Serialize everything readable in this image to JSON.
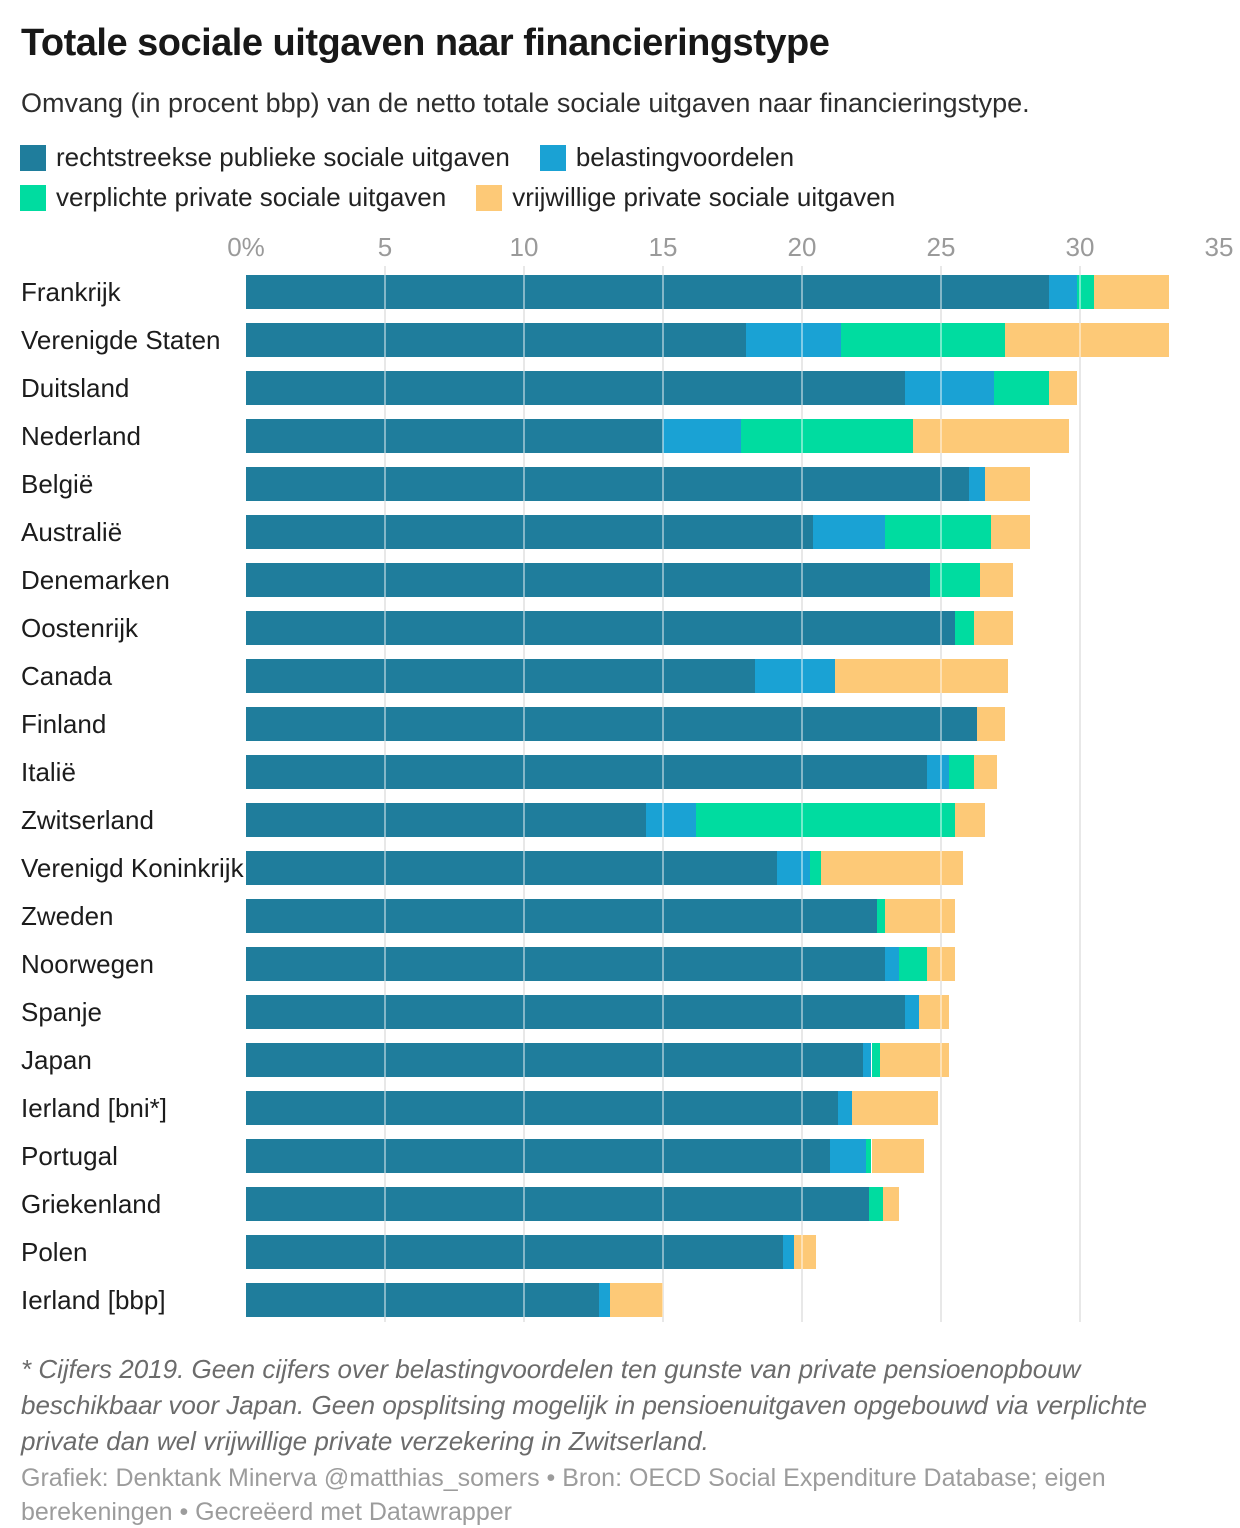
{
  "header": {
    "title": "Totale sociale uitgaven naar financieringstype",
    "subtitle": "Omvang (in procent bbp) van de netto totale sociale uitgaven naar financieringstype."
  },
  "legend": {
    "items": [
      {
        "label": "rechtstreekse publieke sociale uitgaven",
        "color": "#1f7d9c"
      },
      {
        "label": "belastingvoordelen",
        "color": "#1aa2d4"
      },
      {
        "label": "verplichte private sociale uitgaven",
        "color": "#00dca0"
      },
      {
        "label": "vrijwillige private sociale uitgaven",
        "color": "#fdc977"
      }
    ]
  },
  "axis": {
    "ticks": [
      {
        "label": "0%",
        "value": 0
      },
      {
        "label": "5",
        "value": 5
      },
      {
        "label": "10",
        "value": 10
      },
      {
        "label": "15",
        "value": 15
      },
      {
        "label": "20",
        "value": 20
      },
      {
        "label": "25",
        "value": 25
      },
      {
        "label": "30",
        "value": 30
      },
      {
        "label": "35",
        "value": 35
      }
    ],
    "gridline_values": [
      5,
      10,
      15,
      20,
      25,
      30
    ]
  },
  "chart_data": {
    "type": "bar",
    "stacked": true,
    "orientation": "horizontal",
    "unit": "% bbp",
    "xlim": [
      0,
      35
    ],
    "grid": true,
    "legend_position": "top",
    "categories": [
      "Frankrijk",
      "Verenigde Staten",
      "Duitsland",
      "Nederland",
      "België",
      "Australië",
      "Denemarken",
      "Oostenrijk",
      "Canada",
      "Finland",
      "Italië",
      "Zwitserland",
      "Verenigd Koninkrijk",
      "Zweden",
      "Noorwegen",
      "Spanje",
      "Japan",
      "Ierland [bni*]",
      "Portugal",
      "Griekenland",
      "Polen",
      "Ierland [bbp]"
    ],
    "series": [
      {
        "name": "rechtstreekse publieke sociale uitgaven",
        "color": "#1f7d9c",
        "values": [
          28.9,
          18.0,
          23.7,
          15.0,
          26.0,
          20.4,
          24.6,
          25.5,
          18.3,
          26.3,
          24.5,
          14.4,
          19.1,
          22.7,
          23.0,
          23.7,
          22.2,
          21.3,
          21.0,
          22.4,
          19.3,
          12.7
        ]
      },
      {
        "name": "belastingvoordelen",
        "color": "#1aa2d4",
        "values": [
          1.0,
          3.4,
          3.2,
          2.8,
          0.6,
          2.6,
          0,
          0,
          2.9,
          0,
          0.8,
          1.8,
          1.2,
          0,
          0.5,
          0.5,
          0.3,
          0.5,
          1.3,
          0,
          0.4,
          0.4
        ]
      },
      {
        "name": "verplichte private sociale uitgaven",
        "color": "#00dca0",
        "values": [
          0.6,
          5.9,
          2.0,
          6.2,
          0,
          3.8,
          1.8,
          0.7,
          0,
          0,
          0.9,
          9.3,
          0.4,
          0.3,
          1.0,
          0,
          0.3,
          0,
          0.2,
          0.5,
          0,
          0
        ]
      },
      {
        "name": "vrijwillige private sociale uitgaven",
        "color": "#fdc977",
        "values": [
          2.7,
          5.9,
          1.0,
          5.6,
          1.6,
          1.4,
          1.2,
          1.4,
          6.2,
          1.0,
          0.8,
          1.1,
          5.1,
          2.5,
          1.0,
          1.1,
          2.5,
          3.1,
          1.9,
          0.6,
          0.8,
          1.9
        ]
      }
    ]
  },
  "footer": {
    "footnote": "* Cijfers 2019. Geen cijfers over belastingvoordelen ten gunste van private pensioenopbouw beschikbaar voor Japan. Geen opsplitsing mogelijk in pensioenuitgaven opgebouwd via verplichte private dan wel vrijwillige private verzekering in Zwitserland.",
    "credit": "Grafiek: Denktank Minerva @matthias_somers • Bron: OECD Social Expenditure Database; eigen berekeningen • Gecreëerd met Datawrapper"
  }
}
